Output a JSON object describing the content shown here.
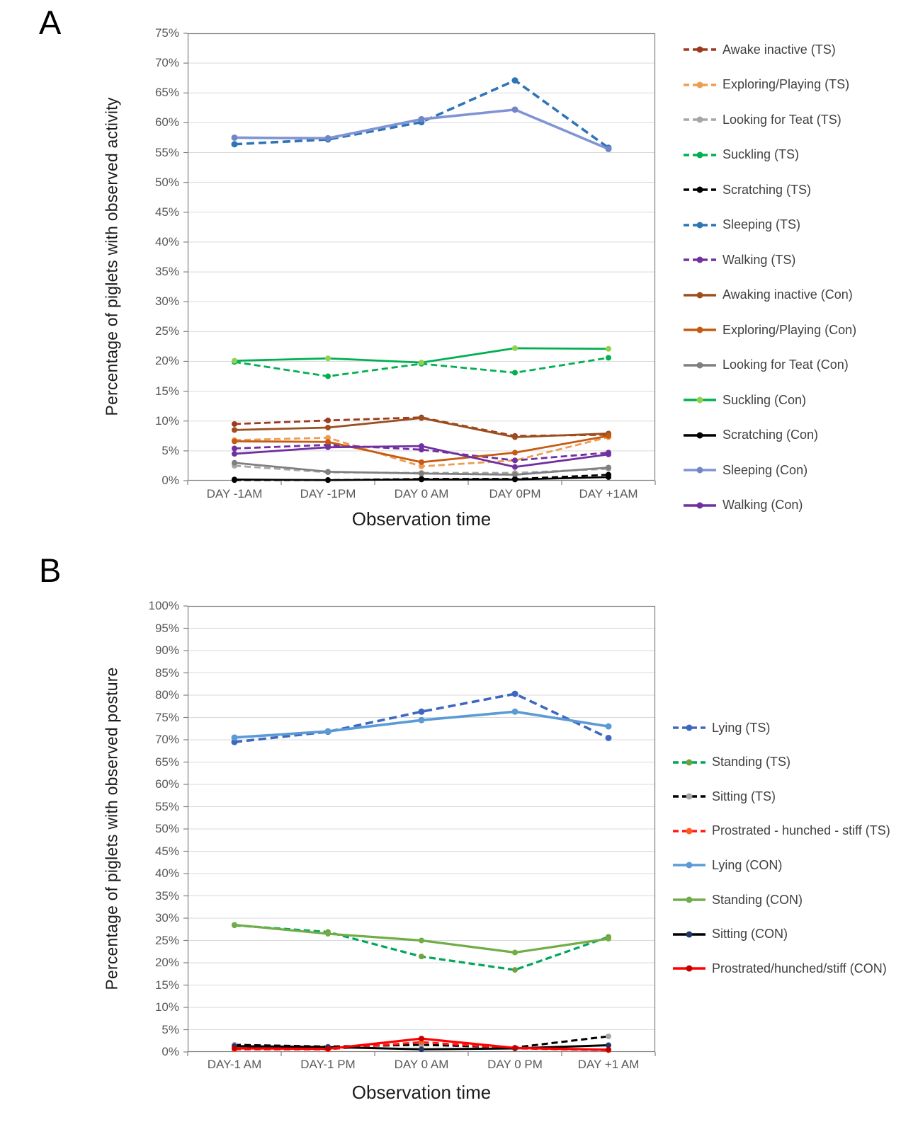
{
  "figure": {
    "panel_count": 2,
    "background": "#FFFFFF"
  },
  "chart_data": [
    {
      "type": "line",
      "panel_label": "A",
      "ylabel": "Percentage of piglets with observed activity",
      "xlabel": "Observation time",
      "ylim": [
        0,
        75
      ],
      "ytick_step": 5,
      "ytick_suffix": "%",
      "grid": "horizontal",
      "legend_position": "right",
      "categories": [
        "DAY -1AM",
        "DAY -1PM",
        "DAY 0 AM",
        "DAY 0PM",
        "DAY +1AM"
      ],
      "series": [
        {
          "name": "Awake inactive (TS)",
          "color": "#9E3A1F",
          "marker_color": "#9E3A1F",
          "dash": true,
          "width": 2.8,
          "values": [
            9.5,
            10.1,
            10.6,
            7.5,
            7.7
          ]
        },
        {
          "name": "Exploring/Playing (TS)",
          "color": "#EE9C51",
          "marker_color": "#EE9C51",
          "dash": true,
          "width": 2.8,
          "values": [
            6.8,
            7.2,
            2.4,
            3.4,
            7.3
          ]
        },
        {
          "name": "Looking for Teat (TS)",
          "color": "#A6A6A6",
          "marker_color": "#A6A6A6",
          "dash": true,
          "width": 2.8,
          "values": [
            2.5,
            1.4,
            1.3,
            1.3,
            2.0
          ]
        },
        {
          "name": "Suckling (TS)",
          "color": "#00B050",
          "marker_color": "#00B050",
          "dash": true,
          "width": 2.8,
          "values": [
            19.9,
            17.5,
            19.6,
            18.1,
            20.6
          ]
        },
        {
          "name": "Scratching (TS)",
          "color": "#000000",
          "marker_color": "#000000",
          "dash": true,
          "width": 2.6,
          "values": [
            0.1,
            0.1,
            0.3,
            0.3,
            1.0
          ]
        },
        {
          "name": "Sleeping (TS)",
          "color": "#2E75B6",
          "marker_color": "#2E75B6",
          "dash": true,
          "width": 3.6,
          "values": [
            56.4,
            57.2,
            60.1,
            67.1,
            55.8
          ]
        },
        {
          "name": "Walking (TS)",
          "color": "#7030A0",
          "marker_color": "#7030A0",
          "dash": true,
          "width": 2.8,
          "values": [
            5.4,
            6.0,
            5.2,
            3.4,
            4.7
          ]
        },
        {
          "name": "Awaking inactive (Con)",
          "color": "#9C4F1D",
          "marker_color": "#9C4F1D",
          "dash": false,
          "width": 2.8,
          "values": [
            8.5,
            8.9,
            10.5,
            7.3,
            7.9
          ]
        },
        {
          "name": "Exploring/Playing (Con)",
          "color": "#C55A11",
          "marker_color": "#C55A11",
          "dash": false,
          "width": 2.8,
          "values": [
            6.6,
            6.5,
            3.1,
            4.7,
            7.5
          ]
        },
        {
          "name": "Looking for Teat (Con)",
          "color": "#7F7F7F",
          "marker_color": "#7F7F7F",
          "dash": false,
          "width": 2.8,
          "values": [
            3.0,
            1.5,
            1.2,
            1.0,
            2.2
          ]
        },
        {
          "name": "Suckling (Con)",
          "color": "#00B050",
          "marker_color": "#92D050",
          "dash": false,
          "width": 2.8,
          "values": [
            20.1,
            20.5,
            19.8,
            22.2,
            22.1
          ]
        },
        {
          "name": "Scratching (Con)",
          "color": "#000000",
          "marker_color": "#000000",
          "dash": false,
          "width": 2.6,
          "values": [
            0.2,
            0.1,
            0.2,
            0.2,
            0.6
          ]
        },
        {
          "name": "Sleeping (Con)",
          "color": "#8093D4",
          "marker_color": "#7286C6",
          "dash": false,
          "width": 3.6,
          "values": [
            57.5,
            57.4,
            60.6,
            62.2,
            55.6
          ]
        },
        {
          "name": "Walking (Con)",
          "color": "#7030A0",
          "marker_color": "#7030A0",
          "dash": false,
          "width": 2.8,
          "values": [
            4.5,
            5.6,
            5.8,
            2.3,
            4.4
          ]
        }
      ]
    },
    {
      "type": "line",
      "panel_label": "B",
      "ylabel": "Percentage of piglets with observed posture",
      "xlabel": "Observation time",
      "ylim": [
        0,
        100
      ],
      "ytick_step": 5,
      "ytick_suffix": "%",
      "grid": "horizontal",
      "legend_position": "right",
      "categories": [
        "DAY-1 AM",
        "DAY-1 PM",
        "DAY 0 AM",
        "DAY 0 PM",
        "DAY +1 AM"
      ],
      "series": [
        {
          "name": "Lying (TS)",
          "color": "#3E68C0",
          "marker_color": "#3E68C0",
          "dash": true,
          "width": 3.6,
          "values": [
            69.5,
            71.8,
            76.3,
            80.3,
            70.4
          ]
        },
        {
          "name": "Standing (TS)",
          "color": "#00A65C",
          "marker_color": "#71A23F",
          "dash": true,
          "width": 3.2,
          "values": [
            28.4,
            26.9,
            21.4,
            18.4,
            25.8
          ]
        },
        {
          "name": "Sitting (TS)",
          "color": "#000000",
          "marker_color": "#A6A6A6",
          "dash": true,
          "width": 3.0,
          "values": [
            1.6,
            1.2,
            1.6,
            1.0,
            3.5
          ]
        },
        {
          "name": "Prostrated - hunched - stiff (TS)",
          "color": "#FF1A12",
          "marker_color": "#FF5A1F",
          "dash": true,
          "width": 3.0,
          "values": [
            0.6,
            0.6,
            2.2,
            0.8,
            0.4
          ]
        },
        {
          "name": "Lying (CON)",
          "color": "#5B9BD5",
          "marker_color": "#5B9BD5",
          "dash": false,
          "width": 3.6,
          "values": [
            70.5,
            71.9,
            74.4,
            76.3,
            73.0
          ]
        },
        {
          "name": "Standing (CON)",
          "color": "#70AD47",
          "marker_color": "#70AD47",
          "dash": false,
          "width": 3.2,
          "values": [
            28.5,
            26.5,
            25.0,
            22.3,
            25.4
          ]
        },
        {
          "name": "Sitting (CON)",
          "color": "#000000",
          "marker_color": "#1F3864",
          "dash": false,
          "width": 3.0,
          "values": [
            1.3,
            1.1,
            0.6,
            0.8,
            1.5
          ]
        },
        {
          "name": "Prostrated/hunched/stiff (CON)",
          "color": "#FF0000",
          "marker_color": "#C00000",
          "dash": false,
          "width": 3.2,
          "values": [
            0.8,
            0.7,
            3.0,
            0.9,
            0.5
          ]
        }
      ]
    }
  ]
}
